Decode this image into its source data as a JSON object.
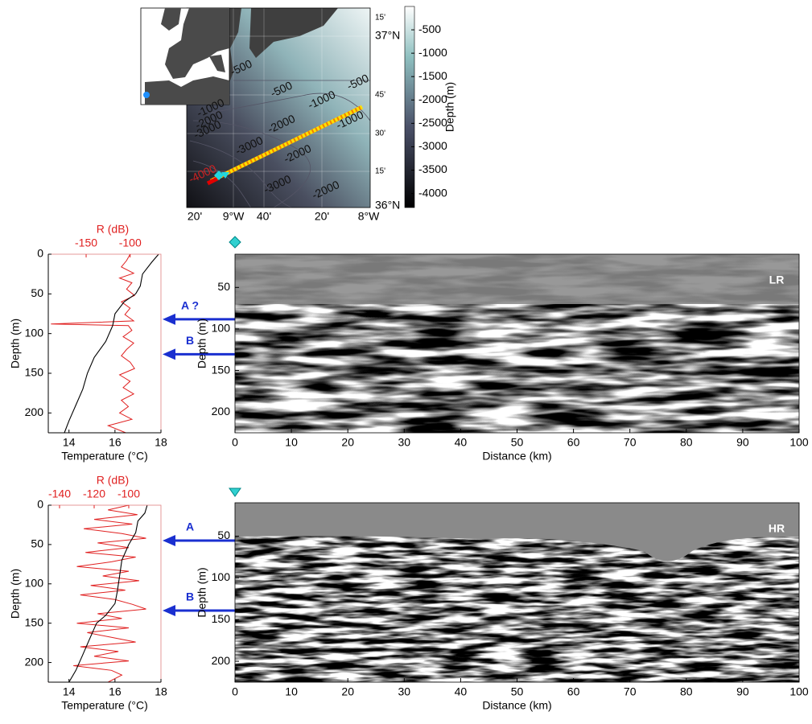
{
  "map": {
    "lat_labels": [
      "15'",
      "37°N",
      "45'",
      "30'",
      "15'",
      "36°N"
    ],
    "lon_labels": [
      "20'",
      "9°W",
      "40'",
      "20'",
      "8°W"
    ],
    "colorbar": {
      "label": "Depth (m)",
      "ticks": [
        -500,
        -1000,
        -1500,
        -2000,
        -2500,
        -3000,
        -3500,
        -4000
      ]
    },
    "contour_labels": [
      "-500",
      "-500",
      "-500",
      "-1000",
      "-1000",
      "-1000",
      "-2000",
      "-2000",
      "-2000",
      "-2000",
      "-3000",
      "-3000",
      "-3000",
      "-4000"
    ]
  },
  "chart_data": [
    {
      "type": "profile",
      "ylabel": "Depth (m)",
      "xlabel": "Temperature (°C)",
      "x2label": "R (dB)",
      "ylim": [
        0,
        225
      ],
      "yticks": [
        0,
        50,
        100,
        150,
        200
      ],
      "xlim": [
        13.1,
        18
      ],
      "xticks": [
        14,
        16,
        18
      ],
      "x2lim": [
        -193,
        -65
      ],
      "x2ticks": [
        -150,
        -100
      ],
      "temperature": {
        "color": "#000000",
        "depth": [
          0,
          10,
          25,
          40,
          50,
          60,
          75,
          90,
          110,
          130,
          150,
          170,
          190,
          210,
          225
        ],
        "values": [
          17.9,
          17.6,
          17.2,
          17.1,
          16.9,
          16.4,
          16.0,
          15.9,
          15.6,
          15.1,
          14.8,
          14.6,
          14.3,
          14.0,
          13.8
        ]
      },
      "reflectivity": {
        "color": "#e02020",
        "depth": [
          0,
          8,
          16,
          24,
          30,
          36,
          44,
          52,
          60,
          68,
          76,
          84,
          88,
          90,
          96,
          104,
          112,
          120,
          128,
          136,
          144,
          152,
          160,
          168,
          176,
          184,
          192,
          200,
          208,
          216,
          225
        ],
        "values": [
          -100,
          -104,
          -110,
          -96,
          -112,
          -98,
          -104,
          -95,
          -110,
          -100,
          -106,
          -96,
          -190,
          -102,
          -98,
          -108,
          -96,
          -104,
          -110,
          -100,
          -95,
          -112,
          -100,
          -108,
          -96,
          -110,
          -102,
          -112,
          -98,
          -125,
          -105
        ]
      },
      "annotations": [
        {
          "label": "A ?",
          "depth": 82
        },
        {
          "label": "B",
          "depth": 126
        }
      ]
    },
    {
      "type": "seismic",
      "label": "LR",
      "xlabel": "Distance (km)",
      "ylabel": "Depth (m)",
      "xlim": [
        0,
        100
      ],
      "xticks": [
        0,
        10,
        20,
        30,
        40,
        50,
        60,
        70,
        80,
        90,
        100
      ],
      "ylim": [
        10,
        225
      ],
      "yticks": [
        50,
        100,
        150,
        200
      ]
    },
    {
      "type": "profile",
      "ylabel": "Depth (m)",
      "xlabel": "Temperature (°C)",
      "x2label": "R (dB)",
      "ylim": [
        0,
        225
      ],
      "yticks": [
        0,
        50,
        100,
        150,
        200
      ],
      "xlim": [
        13.1,
        18
      ],
      "xticks": [
        14,
        16,
        18
      ],
      "x2lim": [
        -146.5,
        -81.4
      ],
      "x2ticks": [
        -140,
        -120,
        -100
      ],
      "temperature": {
        "color": "#000000",
        "depth": [
          0,
          10,
          20,
          35,
          50,
          70,
          90,
          110,
          125,
          140,
          150,
          170,
          190,
          210,
          225
        ],
        "values": [
          17.4,
          17.3,
          17.0,
          16.9,
          16.6,
          16.3,
          16.2,
          16.1,
          16.0,
          15.6,
          15.2,
          14.9,
          14.6,
          14.3,
          14.0
        ]
      },
      "reflectivity": {
        "color": "#e02020",
        "depth": [
          0,
          6,
          12,
          18,
          24,
          30,
          36,
          42,
          48,
          54,
          60,
          66,
          72,
          78,
          84,
          90,
          96,
          102,
          108,
          114,
          120,
          126,
          132,
          138,
          144,
          150,
          156,
          162,
          168,
          174,
          180,
          186,
          192,
          198,
          204,
          210,
          216,
          225
        ],
        "values": [
          -100,
          -112,
          -95,
          -120,
          -98,
          -126,
          -104,
          -90,
          -118,
          -100,
          -125,
          -96,
          -110,
          -130,
          -100,
          -115,
          -94,
          -122,
          -102,
          -128,
          -108,
          -98,
          -90,
          -118,
          -104,
          -130,
          -100,
          -124,
          -110,
          -96,
          -128,
          -106,
          -120,
          -100,
          -132,
          -110,
          -104,
          -112
        ]
      },
      "annotations": [
        {
          "label": "A",
          "depth": 45
        },
        {
          "label": "B",
          "depth": 134
        }
      ]
    },
    {
      "type": "seismic",
      "label": "HR",
      "xlabel": "Distance (km)",
      "ylabel": "Depth (m)",
      "xlim": [
        0,
        100
      ],
      "xticks": [
        0,
        10,
        20,
        30,
        40,
        50,
        60,
        70,
        80,
        90,
        100
      ],
      "ylim": [
        10,
        225
      ],
      "yticks": [
        50,
        100,
        150,
        200
      ]
    }
  ]
}
